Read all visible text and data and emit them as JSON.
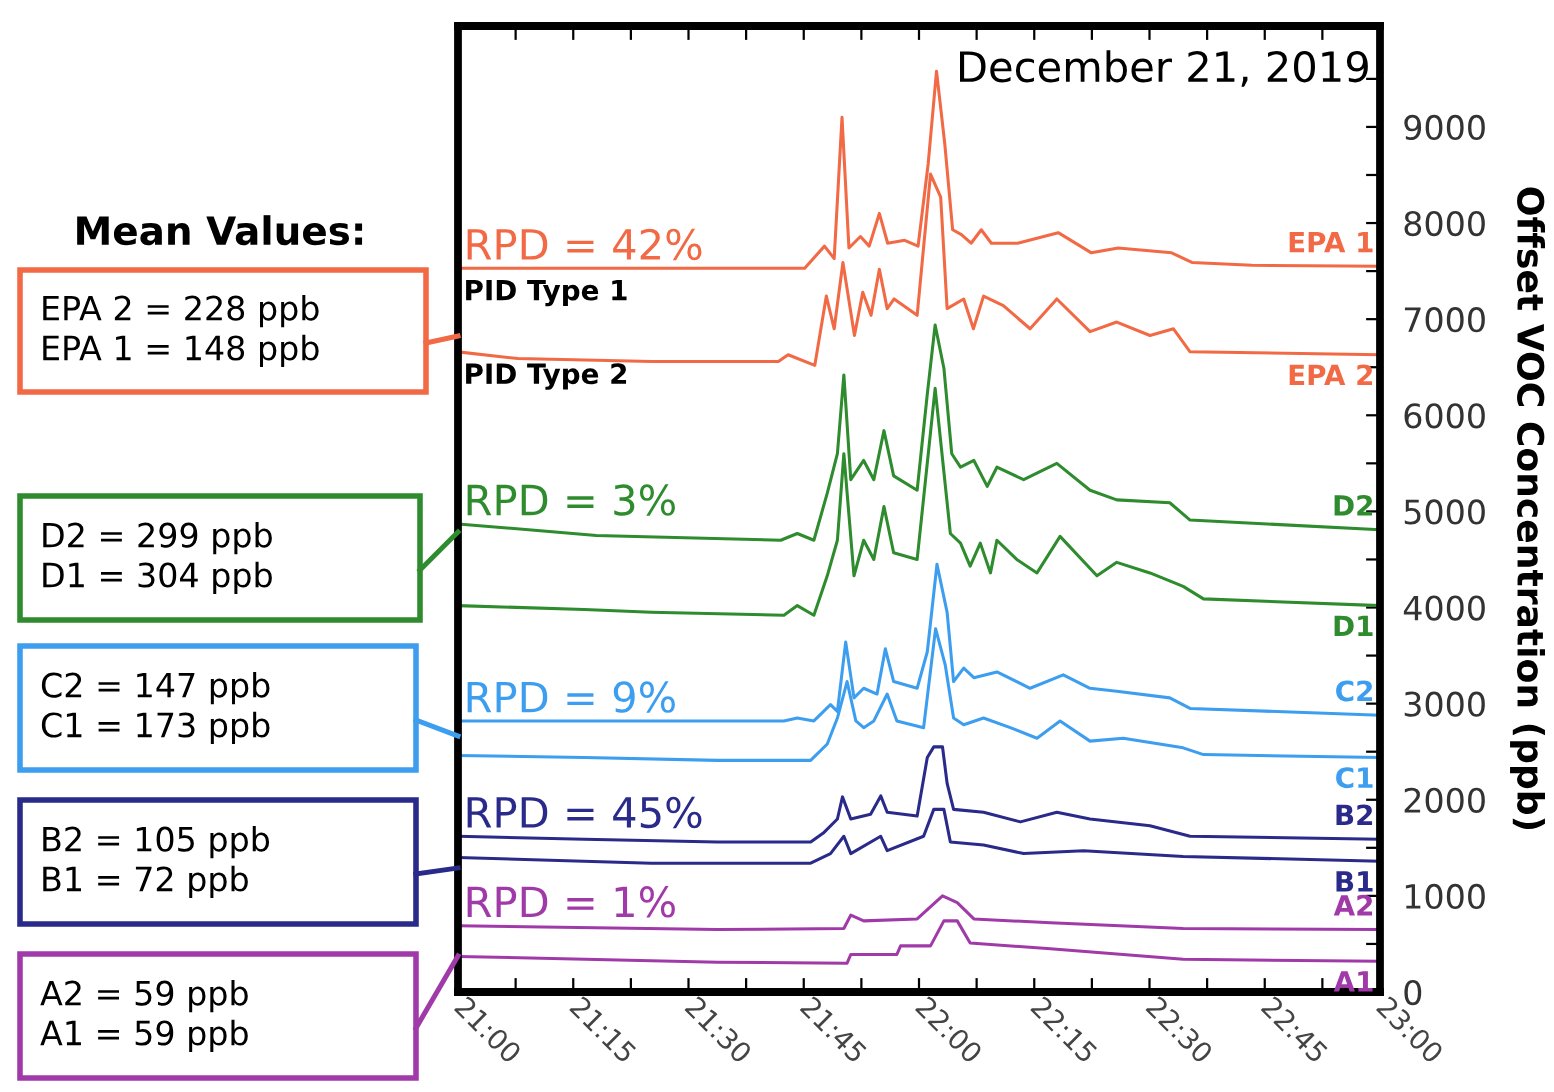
{
  "chart_data": {
    "type": "line",
    "title": "December 21, 2019",
    "ylabel": "Offset VOC Concentration (ppb)",
    "xlim": [
      21,
      23
    ],
    "ylim": [
      0,
      10050
    ],
    "xticks": [
      {
        "value": 21,
        "label": "21:00"
      },
      {
        "value": 21.125,
        "label": null
      },
      {
        "value": 21.25,
        "label": "21:15"
      },
      {
        "value": 21.375,
        "label": null
      },
      {
        "value": 21.5,
        "label": "21:30"
      },
      {
        "value": 21.625,
        "label": null
      },
      {
        "value": 21.75,
        "label": "21:45"
      },
      {
        "value": 21.875,
        "label": null
      },
      {
        "value": 22,
        "label": "22:00"
      },
      {
        "value": 22.125,
        "label": null
      },
      {
        "value": 22.25,
        "label": "22:15"
      },
      {
        "value": 22.375,
        "label": null
      },
      {
        "value": 22.5,
        "label": "22:30"
      },
      {
        "value": 22.625,
        "label": null
      },
      {
        "value": 22.75,
        "label": "22:45"
      },
      {
        "value": 22.875,
        "label": null
      },
      {
        "value": 23,
        "label": "23:00"
      }
    ],
    "yticks": [
      0,
      {
        "value": 500,
        "label": null
      },
      1000,
      {
        "value": 1500,
        "label": null
      },
      2000,
      {
        "value": 2500,
        "label": null
      },
      3000,
      {
        "value": 3500,
        "label": null
      },
      4000,
      {
        "value": 4500,
        "label": null
      },
      5000,
      {
        "value": 5500,
        "label": null
      },
      6000,
      {
        "value": 6500,
        "label": null
      },
      7000,
      {
        "value": 7500,
        "label": null
      },
      8000,
      {
        "value": 8500,
        "label": null
      },
      9000,
      {
        "value": 9500,
        "label": null
      }
    ],
    "line_style": "solid",
    "series": [
      {
        "name": "EPA 1",
        "color": "#f26a45",
        "x": [
          21.0,
          21.752,
          21.795,
          21.816,
          21.833,
          21.848,
          21.873,
          21.892,
          21.914,
          21.932,
          21.969,
          21.998,
          22.02,
          22.038,
          22.056,
          22.073,
          22.092,
          22.113,
          22.135,
          22.157,
          22.214,
          22.302,
          22.374,
          22.432,
          22.548,
          22.592,
          22.722,
          23.0
        ],
        "values": [
          7530,
          7530,
          7760,
          7630,
          9100,
          7740,
          7860,
          7760,
          8100,
          7790,
          7820,
          7760,
          8620,
          9580,
          8820,
          7930,
          7880,
          7790,
          7930,
          7790,
          7790,
          7900,
          7690,
          7740,
          7690,
          7590,
          7560,
          7550
        ]
      },
      {
        "name": "EPA 2",
        "color": "#f26a45",
        "x": [
          21.0,
          21.13,
          21.42,
          21.695,
          21.716,
          21.774,
          21.799,
          21.816,
          21.835,
          21.86,
          21.878,
          21.896,
          21.914,
          21.931,
          21.946,
          21.996,
          22.025,
          22.047,
          22.061,
          22.097,
          22.118,
          22.14,
          22.183,
          22.241,
          22.299,
          22.371,
          22.429,
          22.501,
          22.552,
          22.588,
          23.0
        ],
        "values": [
          6660,
          6590,
          6560,
          6560,
          6630,
          6520,
          7240,
          6900,
          7590,
          6830,
          7280,
          7040,
          7520,
          7110,
          7210,
          7040,
          8510,
          8270,
          7110,
          7210,
          6900,
          7240,
          7140,
          6900,
          7210,
          6870,
          6970,
          6830,
          6900,
          6660,
          6630
        ]
      },
      {
        "name": "D2",
        "color": "#2e8b2e",
        "x": [
          21.0,
          21.3,
          21.7,
          21.736,
          21.772,
          21.801,
          21.823,
          21.837,
          21.852,
          21.88,
          21.902,
          21.924,
          21.945,
          21.996,
          22.018,
          22.035,
          22.054,
          22.071,
          22.09,
          22.119,
          22.148,
          22.169,
          22.227,
          22.299,
          22.371,
          22.429,
          22.544,
          22.588,
          23.0
        ],
        "values": [
          4870,
          4750,
          4700,
          4770,
          4700,
          5190,
          5600,
          6420,
          5330,
          5530,
          5330,
          5840,
          5370,
          5220,
          6220,
          6940,
          6490,
          5600,
          5460,
          5530,
          5260,
          5460,
          5330,
          5500,
          5220,
          5120,
          5090,
          4910,
          4810
        ]
      },
      {
        "name": "D1",
        "color": "#2e8b2e",
        "x": [
          21.0,
          21.274,
          21.419,
          21.707,
          21.736,
          21.772,
          21.801,
          21.823,
          21.837,
          21.859,
          21.88,
          21.902,
          21.924,
          21.945,
          21.996,
          22.035,
          22.068,
          22.09,
          22.111,
          22.133,
          22.155,
          22.169,
          22.212,
          22.256,
          22.306,
          22.386,
          22.429,
          22.501,
          22.573,
          22.617,
          23.0
        ],
        "values": [
          4020,
          3980,
          3950,
          3920,
          4020,
          3920,
          4330,
          4700,
          5600,
          4330,
          4700,
          4500,
          5050,
          4570,
          4500,
          6280,
          4770,
          4670,
          4430,
          4670,
          4360,
          4700,
          4500,
          4360,
          4740,
          4330,
          4470,
          4360,
          4220,
          4090,
          4020
        ]
      },
      {
        "name": "C2",
        "color": "#3d9ef0",
        "x": [
          21.0,
          21.707,
          21.736,
          21.772,
          21.808,
          21.823,
          21.841,
          21.859,
          21.88,
          21.909,
          21.927,
          21.945,
          21.996,
          22.018,
          22.039,
          22.061,
          22.075,
          22.097,
          22.119,
          22.169,
          22.241,
          22.313,
          22.371,
          22.429,
          22.544,
          22.588,
          23.0
        ],
        "values": [
          2820,
          2820,
          2850,
          2820,
          2990,
          2920,
          3640,
          3060,
          3160,
          3100,
          3570,
          3230,
          3160,
          3540,
          4450,
          3950,
          3230,
          3370,
          3270,
          3330,
          3160,
          3300,
          3160,
          3130,
          3060,
          2950,
          2880
        ]
      },
      {
        "name": "C1",
        "color": "#3d9ef0",
        "x": [
          21.0,
          21.274,
          21.563,
          21.765,
          21.801,
          21.823,
          21.844,
          21.863,
          21.88,
          21.902,
          21.931,
          21.952,
          22.01,
          22.036,
          22.057,
          22.075,
          22.097,
          22.14,
          22.198,
          22.256,
          22.306,
          22.371,
          22.443,
          22.573,
          22.617,
          23.0
        ],
        "values": [
          2460,
          2440,
          2410,
          2410,
          2580,
          2850,
          3230,
          2820,
          2750,
          2820,
          3100,
          2820,
          2750,
          3780,
          3400,
          2850,
          2780,
          2850,
          2750,
          2640,
          2820,
          2610,
          2640,
          2540,
          2470,
          2440
        ]
      },
      {
        "name": "B2",
        "color": "#2a2a8a",
        "x": [
          21.0,
          21.274,
          21.563,
          21.765,
          21.794,
          21.823,
          21.834,
          21.852,
          21.895,
          21.917,
          21.931,
          21.996,
          22.018,
          22.032,
          22.051,
          22.061,
          22.075,
          22.14,
          22.22,
          22.299,
          22.371,
          22.501,
          22.588,
          23.0
        ],
        "values": [
          1620,
          1590,
          1560,
          1560,
          1660,
          1800,
          2030,
          1800,
          1850,
          2040,
          1870,
          1830,
          2440,
          2550,
          2550,
          2170,
          1900,
          1870,
          1770,
          1870,
          1800,
          1730,
          1620,
          1590
        ]
      },
      {
        "name": "B1",
        "color": "#2a2a8a",
        "x": [
          21.0,
          21.419,
          21.765,
          21.808,
          21.837,
          21.852,
          21.917,
          21.931,
          22.01,
          22.032,
          22.054,
          22.068,
          22.14,
          22.227,
          22.357,
          22.573,
          23.0
        ],
        "values": [
          1400,
          1340,
          1340,
          1440,
          1620,
          1440,
          1620,
          1470,
          1620,
          1900,
          1900,
          1560,
          1530,
          1440,
          1470,
          1410,
          1360
        ]
      },
      {
        "name": "A2",
        "color": "#a03aa8",
        "x": [
          21.0,
          21.563,
          21.837,
          21.852,
          21.88,
          21.996,
          22.051,
          22.083,
          22.119,
          22.285,
          22.573,
          23.0
        ],
        "values": [
          690,
          650,
          660,
          800,
          740,
          760,
          1000,
          930,
          760,
          720,
          660,
          650
        ]
      },
      {
        "name": "A1",
        "color": "#a03aa8",
        "x": [
          21.0,
          21.563,
          21.844,
          21.852,
          21.952,
          21.96,
          22.025,
          22.054,
          22.083,
          22.111,
          22.285,
          22.573,
          23.0
        ],
        "values": [
          370,
          310,
          300,
          390,
          390,
          480,
          480,
          740,
          740,
          510,
          450,
          340,
          320
        ]
      }
    ],
    "annotations": [
      "RPD = 42%",
      "RPD = 3%",
      "RPD = 9%",
      "RPD = 45%",
      "RPD = 1%",
      "PID Type 1",
      "PID Type 2",
      "Mean Values:",
      "EPA 2 = 228 ppb\nEPA 1 = 148 ppb",
      "D2 = 299 ppb\nD1 = 304 ppb",
      "C2 = 147 ppb\nC1 = 173 ppb",
      "B2 = 105 ppb\nB1 = 72 ppb",
      "A2 = 59 ppb\nA1 = 59 ppb"
    ]
  }
}
